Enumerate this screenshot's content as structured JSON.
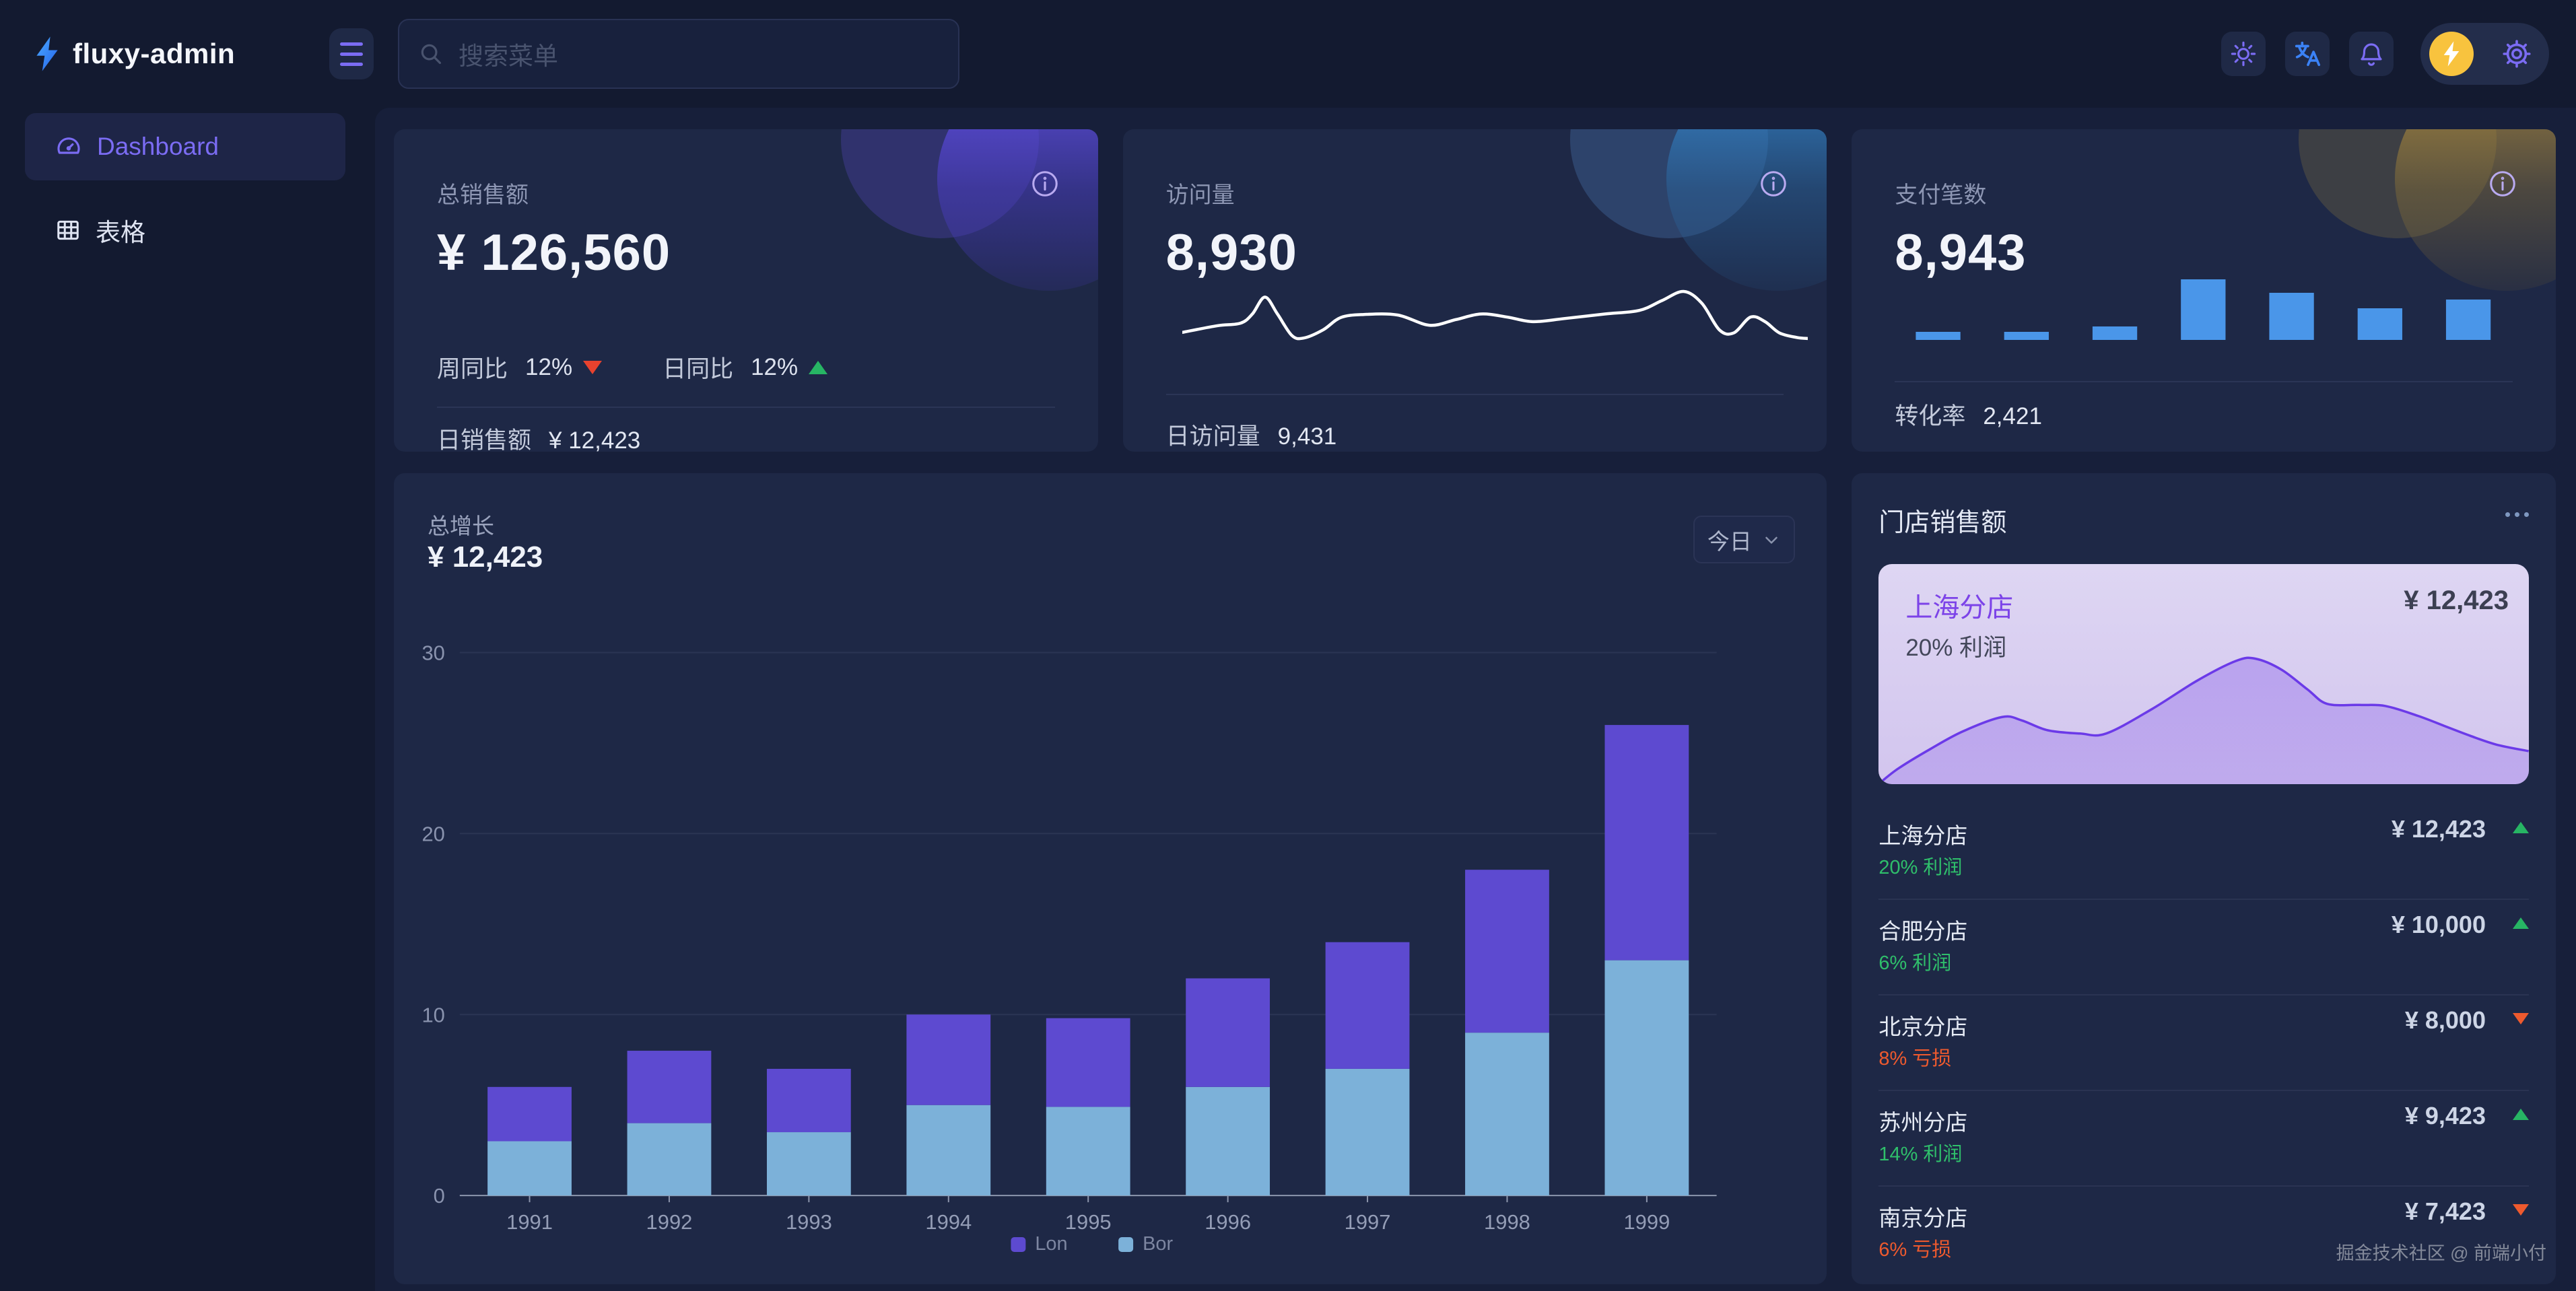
{
  "app": {
    "title": "fluxy-admin",
    "logo_icon": "lightning-bolt",
    "watermark": "掘金技术社区 @ 前端小付"
  },
  "header": {
    "search_placeholder": "搜索菜单",
    "icons": [
      "sun-icon",
      "translate-icon",
      "bell-icon",
      "avatar-lightning",
      "gear-icon"
    ]
  },
  "sidebar": {
    "items": [
      {
        "label": "Dashboard",
        "icon": "gauge-icon",
        "active": true
      },
      {
        "label": "表格",
        "icon": "table-icon",
        "active": false
      }
    ]
  },
  "colors": {
    "accent_purple": "#7b6cf3",
    "bar_purple": "#5d4ad0",
    "bar_blue": "#7cb1d9",
    "mini_bar_blue": "#4a96e9",
    "green": "#27b564",
    "red": "#ee5a2e",
    "avatar_yellow": "#f8c33e",
    "translate_blue": "#3b82f6",
    "card_bg": "#1e2846",
    "page_bg": "#131a30",
    "content_bg": "#171f3a",
    "featured_card_bg": "#d8cdf0",
    "featured_line": "#6b3ae8"
  },
  "stat_cards": [
    {
      "title": "总销售额",
      "value": "¥ 126,560",
      "trends": [
        {
          "label": "周同比",
          "value": "12%",
          "direction": "down"
        },
        {
          "label": "日同比",
          "value": "12%",
          "direction": "up"
        }
      ],
      "footer_label": "日销售额",
      "footer_value": "¥ 12,423"
    },
    {
      "title": "访问量",
      "value": "8,930",
      "footer_label": "日访问量",
      "footer_value": "9,431"
    },
    {
      "title": "支付笔数",
      "value": "8,943",
      "footer_label": "转化率",
      "footer_value": "2,421"
    }
  ],
  "growth_card": {
    "title": "总增长",
    "value": "¥ 12,423",
    "range_label": "今日"
  },
  "stores_panel": {
    "title": "门店销售额",
    "featured": {
      "name": "上海分店",
      "value": "¥ 12,423",
      "profit": "20% 利润"
    },
    "rows": [
      {
        "name": "上海分店",
        "value": "¥ 12,423",
        "sub": "20% 利润",
        "direction": "up"
      },
      {
        "name": "合肥分店",
        "value": "¥ 10,000",
        "sub": "6% 利润",
        "direction": "up"
      },
      {
        "name": "北京分店",
        "value": "¥ 8,000",
        "sub": "8% 亏损",
        "direction": "down"
      },
      {
        "name": "苏州分店",
        "value": "¥ 9,423",
        "sub": "14% 利润",
        "direction": "up"
      },
      {
        "name": "南京分店",
        "value": "¥ 7,423",
        "sub": "6% 亏损",
        "direction": "down"
      }
    ]
  },
  "chart_data": [
    {
      "id": "growth",
      "type": "bar",
      "stacked": true,
      "title": "总增长",
      "categories": [
        "1991",
        "1992",
        "1993",
        "1994",
        "1995",
        "1996",
        "1997",
        "1998",
        "1999"
      ],
      "series": [
        {
          "name": "Bor",
          "color": "#7cb1d9",
          "values": [
            3,
            4,
            3.5,
            5,
            4.9,
            6,
            7,
            9,
            13
          ]
        },
        {
          "name": "Lon",
          "color": "#5d4ad0",
          "values": [
            3,
            4,
            3.5,
            5,
            4.9,
            6,
            7,
            9,
            13
          ]
        }
      ],
      "ylim": [
        0,
        30
      ],
      "yticks": [
        0,
        10,
        20,
        30
      ],
      "legend_position": "bottom",
      "grid": true
    },
    {
      "id": "visits-sparkline",
      "type": "line",
      "title": "访问量趋势",
      "x_normalized": [
        0,
        5.6,
        9.3,
        11.2,
        13.2,
        15.2,
        17.5,
        19.4,
        22.5,
        25.3,
        29,
        34.4,
        39.5,
        43.7,
        47.7,
        51.9,
        56,
        61,
        67.5,
        73,
        76.6,
        80.1,
        83,
        85.8,
        88.1,
        90.8,
        93.1,
        95.4,
        98.2,
        100
      ],
      "y_normalized": [
        84,
        71,
        66,
        48,
        15,
        48,
        90,
        95,
        79,
        55,
        49,
        50,
        70,
        59,
        48,
        54,
        63,
        57,
        48,
        41,
        22,
        4,
        27,
        79,
        85,
        54,
        63,
        85,
        94,
        96
      ],
      "color": "#ffffff"
    },
    {
      "id": "payments-bars",
      "type": "bar",
      "title": "支付笔数分布",
      "values": [
        1.2,
        1.2,
        2,
        9,
        7,
        4.7,
        6
      ],
      "color": "#4a96e9"
    },
    {
      "id": "store-area",
      "type": "area",
      "title": "上海分店销售趋势",
      "x_normalized": [
        0,
        3,
        8,
        13,
        19,
        22,
        26,
        31,
        35,
        42,
        49,
        55,
        58,
        62,
        66,
        69,
        74,
        78,
        83,
        87,
        91,
        95,
        100
      ],
      "y_normalized": [
        100,
        93,
        84,
        76,
        69.5,
        71,
        75.5,
        77,
        77,
        66,
        53,
        44,
        43,
        48,
        57,
        63.5,
        64,
        64.5,
        69,
        73.5,
        78,
        82,
        85
      ],
      "line_color": "#6b3ae8",
      "fill_color": "rgba(124,77,233,0.38)"
    }
  ]
}
